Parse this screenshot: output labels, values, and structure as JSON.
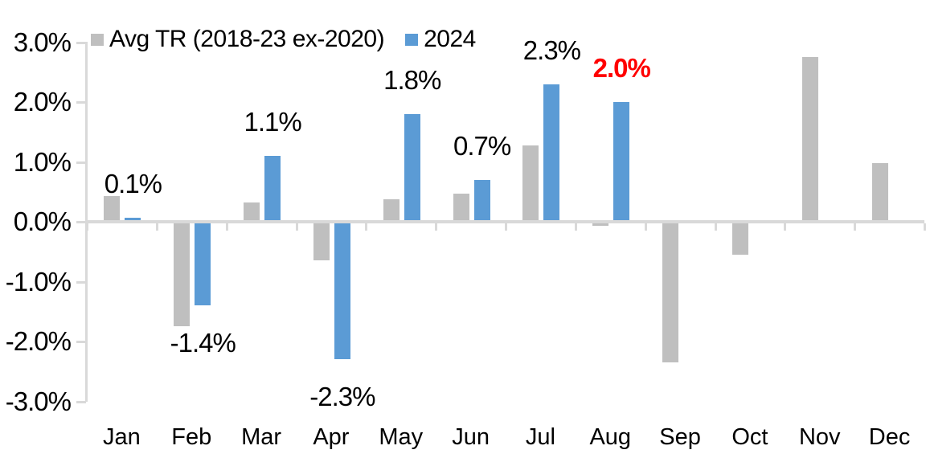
{
  "chart_data": {
    "type": "bar",
    "title": "",
    "categories": [
      "Jan",
      "Feb",
      "Mar",
      "Apr",
      "May",
      "Jun",
      "Jul",
      "Aug",
      "Sep",
      "Oct",
      "Nov",
      "Dec"
    ],
    "series": [
      {
        "name": "Avg TR (2018-23 ex-2020)",
        "color": "#BFBFBF",
        "values": [
          0.43,
          -1.75,
          0.32,
          -0.65,
          0.38,
          0.47,
          1.27,
          -0.07,
          -2.35,
          -0.55,
          2.75,
          0.98
        ]
      },
      {
        "name": "2024",
        "color": "#5B9BD5",
        "values": [
          0.07,
          -1.4,
          1.1,
          -2.3,
          1.8,
          0.7,
          2.3,
          2.0,
          null,
          null,
          null,
          null
        ]
      }
    ],
    "data_labels": [
      {
        "text": "0.1%",
        "color": "#000000",
        "bold": false
      },
      {
        "text": "-1.4%",
        "color": "#000000",
        "bold": false
      },
      {
        "text": "1.1%",
        "color": "#000000",
        "bold": false
      },
      {
        "text": "-2.3%",
        "color": "#000000",
        "bold": false
      },
      {
        "text": "1.8%",
        "color": "#000000",
        "bold": false
      },
      {
        "text": "0.7%",
        "color": "#000000",
        "bold": false
      },
      {
        "text": "2.3%",
        "color": "#000000",
        "bold": false
      },
      {
        "text": "2.0%",
        "color": "#FF0000",
        "bold": true
      },
      null,
      null,
      null,
      null
    ],
    "y_axis": {
      "tick_labels": [
        "3.0%",
        "2.0%",
        "1.0%",
        "0.0%",
        "-1.0%",
        "-2.0%",
        "-3.0%"
      ],
      "tick_values": [
        3,
        2,
        1,
        0,
        -1,
        -2,
        -3
      ],
      "ylim": [
        -3,
        3
      ],
      "unit": "%"
    },
    "legend": {
      "position": "top",
      "entries": [
        {
          "label": "Avg TR (2018-23 ex-2020)",
          "color": "#BFBFBF"
        },
        {
          "label": "2024",
          "color": "#5B9BD5"
        }
      ]
    },
    "axis_color": "#D9D9D9",
    "highlight_color": "#FF0000",
    "grid": false
  }
}
